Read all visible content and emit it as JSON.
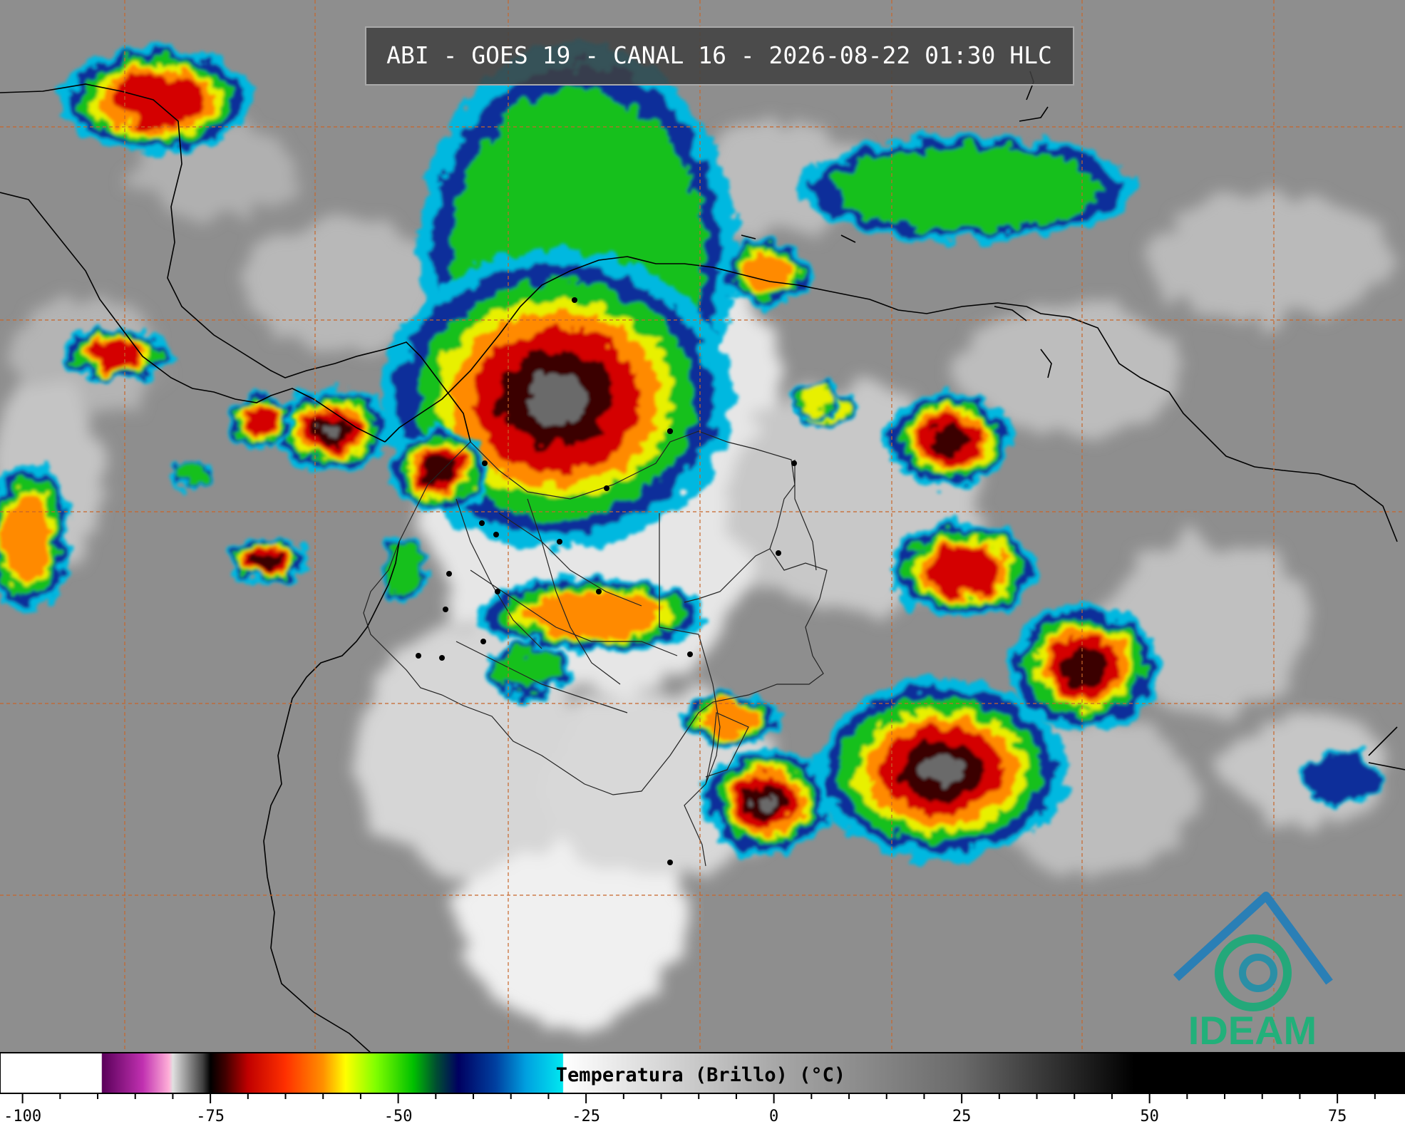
{
  "header": {
    "title": "ABI - GOES 19 - CANAL 16 - 2026-08-22 01:30 HLC"
  },
  "colorbar": {
    "label": "Temperatura (Brillo) (°C)",
    "lim": [
      -103,
      84
    ],
    "ticks": [
      -100,
      -75,
      -50,
      -25,
      0,
      25,
      50,
      75
    ],
    "minor_ticks": [
      -95,
      -90,
      -85,
      -80,
      -70,
      -65,
      -60,
      -55,
      -45,
      -40,
      -35,
      -30,
      -20,
      -15,
      -10,
      -5,
      5,
      10,
      15,
      20,
      30,
      35,
      40,
      45,
      55,
      60,
      65,
      70,
      80
    ],
    "colormap": [
      [
        -103,
        "#ffffff"
      ],
      [
        -89.5,
        "#ffffff"
      ],
      [
        -89.4,
        "#5a005a"
      ],
      [
        -84,
        "#c030b0"
      ],
      [
        -80.5,
        "#ffb0d8"
      ],
      [
        -80,
        "#e0e0e0"
      ],
      [
        -76,
        "#404040"
      ],
      [
        -75,
        "#000000"
      ],
      [
        -73,
        "#400000"
      ],
      [
        -70,
        "#c00000"
      ],
      [
        -65,
        "#ff3000"
      ],
      [
        -60,
        "#ff9000"
      ],
      [
        -57,
        "#ffff00"
      ],
      [
        -53,
        "#80ff00"
      ],
      [
        -48,
        "#00c000"
      ],
      [
        -45,
        "#005030"
      ],
      [
        -42,
        "#000060"
      ],
      [
        -37,
        "#0040a0"
      ],
      [
        -33,
        "#00a0e0"
      ],
      [
        -28.1,
        "#00e8f0"
      ],
      [
        -28,
        "#ffffff"
      ],
      [
        0,
        "#a8a8a8"
      ],
      [
        25,
        "#6a6a6a"
      ],
      [
        48,
        "#000000"
      ],
      [
        84,
        "#000000"
      ]
    ]
  },
  "logo": {
    "text": "IDEAM"
  }
}
